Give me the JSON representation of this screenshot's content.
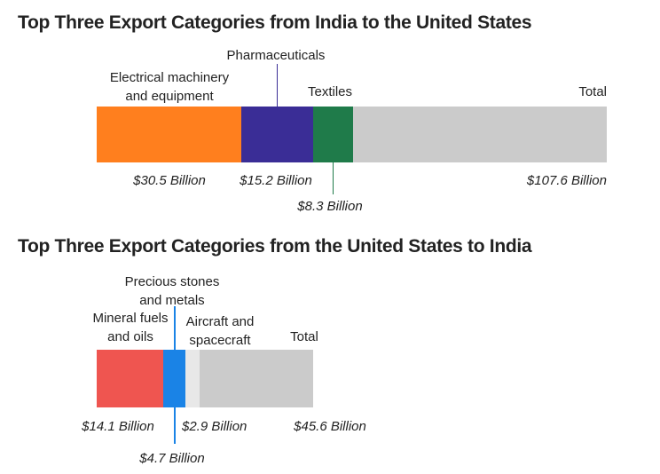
{
  "chart_data": [
    {
      "type": "stacked-bar",
      "title": "Top Three Export Categories from India to the United States",
      "series": [
        {
          "name": "Electrical machinery\nand equipment",
          "color": "#ff7f1e",
          "values": [
            30.5
          ],
          "value_labels": [
            "$30.5 Billion"
          ]
        },
        {
          "name": "Pharmaceuticals",
          "color": "#3a2d96",
          "values": [
            15.2
          ],
          "value_labels": [
            "$15.2 Billion"
          ]
        },
        {
          "name": "Textiles",
          "color": "#1f7b4a",
          "values": [
            8.3
          ],
          "value_labels": [
            "$8.3 Billion"
          ]
        }
      ],
      "total": {
        "name": "Total",
        "color": "#cbcbcb",
        "values": [
          107.6
        ],
        "value_labels": [
          "$107.6 Billion"
        ]
      }
    },
    {
      "type": "stacked-bar",
      "title": "Top Three Export Categories from the United States to India",
      "series": [
        {
          "name": "Mineral fuels\nand oils",
          "color": "#ef5550",
          "values": [
            14.1
          ],
          "value_labels": [
            "$14.1 Billion"
          ]
        },
        {
          "name": "Precious stones\nand metals",
          "color": "#1a83e6",
          "values": [
            4.7
          ],
          "value_labels": [
            "$4.7 Billion"
          ]
        },
        {
          "name": "Aircraft and\nspacecraft",
          "color": "#e8e8e8",
          "values": [
            2.9
          ],
          "value_labels": [
            "$2.9 Billion"
          ]
        }
      ],
      "total": {
        "name": "Total",
        "color": "#cbcbcb",
        "values": [
          45.6
        ],
        "value_labels": [
          "$45.6 Billion"
        ]
      }
    }
  ]
}
